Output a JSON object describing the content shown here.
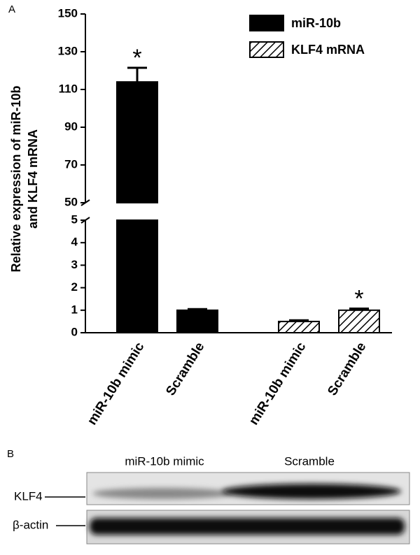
{
  "panel_label": "A",
  "chart_data": {
    "type": "bar",
    "y_label": [
      "Relative expression of miR-10b",
      "and KLF4 mRNA"
    ],
    "categories": [
      "miR-10b mimic",
      "Scramble",
      "miR-10b mimic",
      "Scramble"
    ],
    "series": [
      {
        "name": "miR-10b",
        "color": "#000000",
        "hatch": false,
        "values": [
          114,
          1,
          null,
          null
        ],
        "errors": [
          7.5,
          0.05,
          null,
          null
        ]
      },
      {
        "name": "KLF4 mRNA",
        "color": "#000000",
        "hatch": true,
        "values": [
          null,
          null,
          0.5,
          1.0
        ],
        "errors": [
          null,
          null,
          0.05,
          0.07
        ]
      }
    ],
    "annotations": [
      "*",
      null,
      null,
      "*"
    ],
    "axis_segments": [
      {
        "ylim": [
          0,
          5
        ],
        "yticks": [
          0,
          1,
          2,
          3,
          4,
          5
        ]
      },
      {
        "ylim": [
          50,
          150
        ],
        "yticks": [
          50,
          70,
          90,
          110,
          130,
          150
        ]
      }
    ],
    "legend": "upper right"
  },
  "blot": {
    "panel_label": "B",
    "lanes": [
      "miR-10b mimic",
      "Scramble"
    ],
    "rows": [
      "KLF4",
      "β-actin"
    ]
  }
}
